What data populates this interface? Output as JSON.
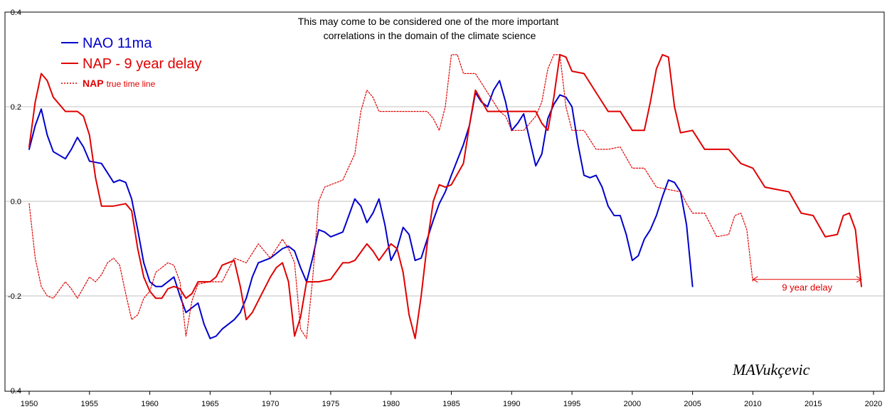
{
  "chart_data": {
    "type": "line",
    "title": "",
    "xlabel": "",
    "ylabel": "",
    "xlim": [
      1950,
      2020
    ],
    "ylim": [
      -0.4,
      0.4
    ],
    "x_ticks": [
      "1950",
      "1955",
      "1960",
      "1965",
      "1970",
      "1975",
      "1980",
      "1985",
      "1990",
      "1995",
      "2000",
      "2005",
      "2010",
      "2015",
      "2020"
    ],
    "y_ticks": [
      "0.4",
      "0.2",
      "0.0",
      "-0.2",
      "-0.4"
    ],
    "y_tick_values": [
      0.4,
      0.2,
      0.0,
      -0.2,
      -0.4
    ],
    "grid": "horizontal",
    "annotation_lines": [
      "This may come to be considered one of the more important",
      "correlations in the domain of the climate science"
    ],
    "signature": "MAVukçevic",
    "delay_label": "9 year delay",
    "delay_range": [
      2010,
      2019
    ],
    "delay_y": -0.165,
    "legend": [
      {
        "name": "NAO 11ma",
        "color": "#0000cc",
        "style": "solid"
      },
      {
        "name": "NAP - 9 year delay",
        "color": "#e00000",
        "style": "solid"
      },
      {
        "name_bold": "NAP",
        "name_small": "true time line",
        "color": "#e00000",
        "style": "dotted"
      }
    ],
    "series": [
      {
        "name": "NAO 11ma",
        "color": "#0000cc",
        "style": "solid",
        "points": [
          [
            1950,
            0.11
          ],
          [
            1950.5,
            0.16
          ],
          [
            1951,
            0.195
          ],
          [
            1951.5,
            0.14
          ],
          [
            1952,
            0.105
          ],
          [
            1953,
            0.09
          ],
          [
            1953.5,
            0.11
          ],
          [
            1954,
            0.135
          ],
          [
            1954.5,
            0.115
          ],
          [
            1955,
            0.085
          ],
          [
            1956,
            0.08
          ],
          [
            1956.5,
            0.06
          ],
          [
            1957,
            0.04
          ],
          [
            1957.5,
            0.045
          ],
          [
            1958,
            0.04
          ],
          [
            1958.5,
            0.005
          ],
          [
            1959,
            -0.06
          ],
          [
            1959.5,
            -0.13
          ],
          [
            1960,
            -0.17
          ],
          [
            1960.5,
            -0.18
          ],
          [
            1961,
            -0.18
          ],
          [
            1961.5,
            -0.17
          ],
          [
            1962,
            -0.16
          ],
          [
            1962.5,
            -0.2
          ],
          [
            1963,
            -0.235
          ],
          [
            1963.5,
            -0.225
          ],
          [
            1964,
            -0.215
          ],
          [
            1964.5,
            -0.26
          ],
          [
            1965,
            -0.29
          ],
          [
            1965.5,
            -0.285
          ],
          [
            1966,
            -0.27
          ],
          [
            1967,
            -0.25
          ],
          [
            1967.5,
            -0.235
          ],
          [
            1968,
            -0.205
          ],
          [
            1968.5,
            -0.16
          ],
          [
            1969,
            -0.13
          ],
          [
            1970,
            -0.12
          ],
          [
            1971,
            -0.1
          ],
          [
            1971.5,
            -0.095
          ],
          [
            1972,
            -0.105
          ],
          [
            1972.5,
            -0.14
          ],
          [
            1973,
            -0.17
          ],
          [
            1973.5,
            -0.12
          ],
          [
            1974,
            -0.06
          ],
          [
            1974.5,
            -0.065
          ],
          [
            1975,
            -0.075
          ],
          [
            1976,
            -0.065
          ],
          [
            1976.5,
            -0.03
          ],
          [
            1977,
            0.005
          ],
          [
            1977.5,
            -0.01
          ],
          [
            1978,
            -0.045
          ],
          [
            1978.5,
            -0.025
          ],
          [
            1979,
            0.005
          ],
          [
            1979.5,
            -0.05
          ],
          [
            1980,
            -0.125
          ],
          [
            1980.5,
            -0.1
          ],
          [
            1981,
            -0.055
          ],
          [
            1981.5,
            -0.07
          ],
          [
            1982,
            -0.125
          ],
          [
            1982.5,
            -0.12
          ],
          [
            1983,
            -0.08
          ],
          [
            1983.5,
            -0.04
          ],
          [
            1984,
            -0.005
          ],
          [
            1984.5,
            0.02
          ],
          [
            1985,
            0.055
          ],
          [
            1986,
            0.12
          ],
          [
            1986.5,
            0.16
          ],
          [
            1987,
            0.23
          ],
          [
            1987.5,
            0.21
          ],
          [
            1988,
            0.2
          ],
          [
            1988.5,
            0.235
          ],
          [
            1989,
            0.255
          ],
          [
            1989.5,
            0.21
          ],
          [
            1990,
            0.15
          ],
          [
            1990.5,
            0.165
          ],
          [
            1991,
            0.185
          ],
          [
            1991.5,
            0.13
          ],
          [
            1992,
            0.075
          ],
          [
            1992.5,
            0.1
          ],
          [
            1993,
            0.175
          ],
          [
            1993.5,
            0.205
          ],
          [
            1994,
            0.225
          ],
          [
            1994.5,
            0.22
          ],
          [
            1995,
            0.2
          ],
          [
            1995.5,
            0.12
          ],
          [
            1996,
            0.055
          ],
          [
            1996.5,
            0.05
          ],
          [
            1997,
            0.055
          ],
          [
            1997.5,
            0.03
          ],
          [
            1998,
            -0.01
          ],
          [
            1998.5,
            -0.03
          ],
          [
            1999,
            -0.03
          ],
          [
            1999.5,
            -0.07
          ],
          [
            2000,
            -0.125
          ],
          [
            2000.5,
            -0.115
          ],
          [
            2001,
            -0.08
          ],
          [
            2001.5,
            -0.06
          ],
          [
            2002,
            -0.03
          ],
          [
            2002.5,
            0.01
          ],
          [
            2003,
            0.045
          ],
          [
            2003.5,
            0.04
          ],
          [
            2004,
            0.02
          ],
          [
            2004.5,
            -0.05
          ],
          [
            2005,
            -0.18
          ]
        ]
      },
      {
        "name": "NAP - 9 year delay",
        "color": "#e00000",
        "style": "solid",
        "points": [
          [
            1950,
            0.115
          ],
          [
            1950.5,
            0.21
          ],
          [
            1951,
            0.27
          ],
          [
            1951.5,
            0.255
          ],
          [
            1952,
            0.22
          ],
          [
            1953,
            0.19
          ],
          [
            1954,
            0.19
          ],
          [
            1954.5,
            0.18
          ],
          [
            1955,
            0.14
          ],
          [
            1955.5,
            0.05
          ],
          [
            1956,
            -0.01
          ],
          [
            1957,
            -0.01
          ],
          [
            1958,
            -0.005
          ],
          [
            1958.5,
            -0.02
          ],
          [
            1959,
            -0.1
          ],
          [
            1959.5,
            -0.16
          ],
          [
            1960,
            -0.19
          ],
          [
            1960.5,
            -0.205
          ],
          [
            1961,
            -0.205
          ],
          [
            1961.5,
            -0.185
          ],
          [
            1962,
            -0.18
          ],
          [
            1962.5,
            -0.185
          ],
          [
            1963,
            -0.205
          ],
          [
            1963.5,
            -0.195
          ],
          [
            1964,
            -0.17
          ],
          [
            1965,
            -0.17
          ],
          [
            1965.5,
            -0.16
          ],
          [
            1966,
            -0.135
          ],
          [
            1967,
            -0.125
          ],
          [
            1967.5,
            -0.18
          ],
          [
            1968,
            -0.25
          ],
          [
            1968.5,
            -0.235
          ],
          [
            1969,
            -0.21
          ],
          [
            1970,
            -0.16
          ],
          [
            1970.5,
            -0.14
          ],
          [
            1971,
            -0.13
          ],
          [
            1971.5,
            -0.17
          ],
          [
            1972,
            -0.285
          ],
          [
            1972.5,
            -0.245
          ],
          [
            1973,
            -0.17
          ],
          [
            1974,
            -0.17
          ],
          [
            1975,
            -0.165
          ],
          [
            1976,
            -0.13
          ],
          [
            1976.5,
            -0.13
          ],
          [
            1977,
            -0.125
          ],
          [
            1978,
            -0.09
          ],
          [
            1978.5,
            -0.105
          ],
          [
            1979,
            -0.125
          ],
          [
            1980,
            -0.09
          ],
          [
            1980.5,
            -0.1
          ],
          [
            1981,
            -0.15
          ],
          [
            1981.5,
            -0.24
          ],
          [
            1982,
            -0.29
          ],
          [
            1982.5,
            -0.2
          ],
          [
            1983,
            -0.09
          ],
          [
            1983.5,
            0.0
          ],
          [
            1984,
            0.035
          ],
          [
            1984.5,
            0.03
          ],
          [
            1985,
            0.035
          ],
          [
            1986,
            0.08
          ],
          [
            1986.5,
            0.16
          ],
          [
            1987,
            0.235
          ],
          [
            1988,
            0.19
          ],
          [
            1989,
            0.19
          ],
          [
            1990,
            0.19
          ],
          [
            1991,
            0.19
          ],
          [
            1992,
            0.19
          ],
          [
            1992.5,
            0.165
          ],
          [
            1993,
            0.15
          ],
          [
            1993.5,
            0.22
          ],
          [
            1994,
            0.31
          ],
          [
            1994.5,
            0.305
          ],
          [
            1995,
            0.275
          ],
          [
            1996,
            0.27
          ],
          [
            1997,
            0.23
          ],
          [
            1998,
            0.19
          ],
          [
            1999,
            0.19
          ],
          [
            1999.5,
            0.17
          ],
          [
            2000,
            0.15
          ],
          [
            2001,
            0.15
          ],
          [
            2001.5,
            0.21
          ],
          [
            2002,
            0.28
          ],
          [
            2002.5,
            0.31
          ],
          [
            2003,
            0.305
          ],
          [
            2003.5,
            0.2
          ],
          [
            2004,
            0.145
          ],
          [
            2005,
            0.15
          ],
          [
            2006,
            0.11
          ],
          [
            2007,
            0.11
          ],
          [
            2008,
            0.11
          ],
          [
            2009,
            0.08
          ],
          [
            2010,
            0.07
          ],
          [
            2011,
            0.03
          ],
          [
            2012,
            0.025
          ],
          [
            2013,
            0.02
          ],
          [
            2014,
            -0.025
          ],
          [
            2015,
            -0.03
          ],
          [
            2016,
            -0.075
          ],
          [
            2017,
            -0.07
          ],
          [
            2017.5,
            -0.03
          ],
          [
            2018,
            -0.025
          ],
          [
            2018.5,
            -0.06
          ],
          [
            2019,
            -0.18
          ]
        ]
      },
      {
        "name": "NAP true time line",
        "color": "#e00000",
        "style": "dotted",
        "points": [
          [
            1950,
            -0.005
          ],
          [
            1950.5,
            -0.12
          ],
          [
            1951,
            -0.18
          ],
          [
            1951.5,
            -0.2
          ],
          [
            1952,
            -0.205
          ],
          [
            1953,
            -0.17
          ],
          [
            1953.5,
            -0.185
          ],
          [
            1954,
            -0.205
          ],
          [
            1955,
            -0.16
          ],
          [
            1955.5,
            -0.17
          ],
          [
            1956,
            -0.155
          ],
          [
            1956.5,
            -0.13
          ],
          [
            1957,
            -0.12
          ],
          [
            1957.5,
            -0.135
          ],
          [
            1958,
            -0.195
          ],
          [
            1958.5,
            -0.25
          ],
          [
            1959,
            -0.24
          ],
          [
            1959.5,
            -0.205
          ],
          [
            1960,
            -0.19
          ],
          [
            1960.5,
            -0.15
          ],
          [
            1961,
            -0.14
          ],
          [
            1961.5,
            -0.13
          ],
          [
            1962,
            -0.135
          ],
          [
            1962.5,
            -0.17
          ],
          [
            1963,
            -0.285
          ],
          [
            1963.5,
            -0.21
          ],
          [
            1964,
            -0.175
          ],
          [
            1965,
            -0.17
          ],
          [
            1966,
            -0.17
          ],
          [
            1967,
            -0.12
          ],
          [
            1968,
            -0.13
          ],
          [
            1969,
            -0.09
          ],
          [
            1970,
            -0.12
          ],
          [
            1971,
            -0.08
          ],
          [
            1971.5,
            -0.1
          ],
          [
            1972,
            -0.13
          ],
          [
            1972.5,
            -0.27
          ],
          [
            1973,
            -0.29
          ],
          [
            1973.5,
            -0.165
          ],
          [
            1974,
            0.0
          ],
          [
            1974.5,
            0.03
          ],
          [
            1975,
            0.035
          ],
          [
            1976,
            0.045
          ],
          [
            1977,
            0.1
          ],
          [
            1977.5,
            0.19
          ],
          [
            1978,
            0.235
          ],
          [
            1978.5,
            0.22
          ],
          [
            1979,
            0.19
          ],
          [
            1980,
            0.19
          ],
          [
            1981,
            0.19
          ],
          [
            1982,
            0.19
          ],
          [
            1983,
            0.19
          ],
          [
            1983.5,
            0.175
          ],
          [
            1984,
            0.15
          ],
          [
            1984.5,
            0.2
          ],
          [
            1985,
            0.31
          ],
          [
            1985.5,
            0.31
          ],
          [
            1986,
            0.27
          ],
          [
            1987,
            0.27
          ],
          [
            1988,
            0.23
          ],
          [
            1989,
            0.19
          ],
          [
            1989.5,
            0.18
          ],
          [
            1990,
            0.15
          ],
          [
            1991,
            0.15
          ],
          [
            1992,
            0.18
          ],
          [
            1992.5,
            0.21
          ],
          [
            1993,
            0.28
          ],
          [
            1993.5,
            0.31
          ],
          [
            1994,
            0.31
          ],
          [
            1994.5,
            0.2
          ],
          [
            1995,
            0.15
          ],
          [
            1996,
            0.15
          ],
          [
            1997,
            0.11
          ],
          [
            1998,
            0.11
          ],
          [
            1999,
            0.115
          ],
          [
            2000,
            0.07
          ],
          [
            2001,
            0.07
          ],
          [
            2002,
            0.03
          ],
          [
            2003,
            0.025
          ],
          [
            2004,
            0.02
          ],
          [
            2004.5,
            -0.005
          ],
          [
            2005,
            -0.025
          ],
          [
            2006,
            -0.025
          ],
          [
            2007,
            -0.075
          ],
          [
            2008,
            -0.07
          ],
          [
            2008.5,
            -0.03
          ],
          [
            2009,
            -0.025
          ],
          [
            2009.5,
            -0.06
          ],
          [
            2010,
            -0.17
          ]
        ]
      }
    ]
  }
}
